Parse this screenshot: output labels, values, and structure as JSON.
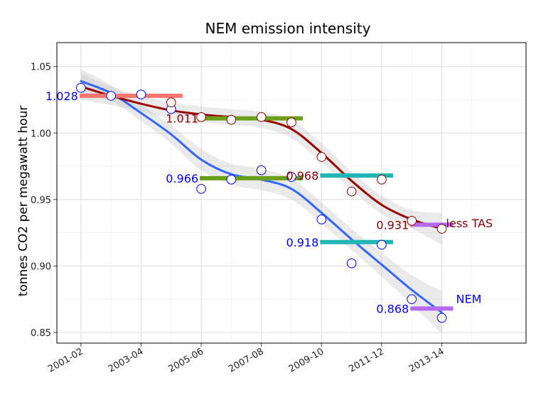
{
  "chart_data": {
    "type": "line",
    "title": "NEM emission intensity",
    "xlabel": "",
    "ylabel": "tonnes CO2 per megawatt hour",
    "ylim": [
      0.842,
      1.068
    ],
    "xlim": [
      2000.2,
      2015.8
    ],
    "y_ticks": [
      "0.85",
      "0.90",
      "0.95",
      "1.00",
      "1.05"
    ],
    "y_tick_values": [
      0.85,
      0.9,
      0.95,
      1.0,
      1.05
    ],
    "x_ticks": [
      "2001-02",
      "2003-04",
      "2005-06",
      "2007-08",
      "2009-10",
      "2011-12",
      "2013-14"
    ],
    "x_tick_values": [
      2001,
      2003,
      2005,
      2007,
      2009,
      2011,
      2013
    ],
    "grid": true,
    "series": [
      {
        "name": "NEM",
        "color": "#0000ff",
        "smooth_color": "#3366ff",
        "x": [
          2001,
          2002,
          2003,
          2004,
          2005,
          2006,
          2007,
          2008,
          2009,
          2010,
          2011,
          2012,
          2013
        ],
        "values": [
          1.034,
          1.028,
          1.029,
          1.018,
          0.958,
          0.965,
          0.972,
          0.967,
          0.935,
          0.902,
          0.916,
          0.875,
          0.861
        ],
        "smooth": [
          1.039,
          1.03,
          1.015,
          0.999,
          0.98,
          0.969,
          0.965,
          0.958,
          0.94,
          0.92,
          0.901,
          0.882,
          0.865
        ],
        "band": [
          0.009,
          0.006,
          0.006,
          0.007,
          0.008,
          0.008,
          0.008,
          0.008,
          0.008,
          0.008,
          0.009,
          0.011,
          0.016
        ]
      },
      {
        "name": "less TAS",
        "color": "#8b0000",
        "smooth_color": "#990000",
        "x": [
          2004,
          2005,
          2006,
          2007,
          2008,
          2009,
          2010,
          2011,
          2012,
          2013
        ],
        "values": [
          1.023,
          1.012,
          1.01,
          1.012,
          1.008,
          0.982,
          0.956,
          0.965,
          0.934,
          0.928
        ],
        "smooth_x": [
          2001,
          2002,
          2003,
          2004,
          2005,
          2006,
          2007,
          2008,
          2009,
          2010,
          2011,
          2012,
          2013
        ],
        "smooth": [
          1.035,
          1.028,
          1.022,
          1.017,
          1.014,
          1.012,
          1.01,
          1.003,
          0.985,
          0.964,
          0.946,
          0.935,
          0.928
        ],
        "band": [
          0.01,
          0.007,
          0.006,
          0.006,
          0.006,
          0.006,
          0.006,
          0.007,
          0.007,
          0.007,
          0.007,
          0.007,
          0.012
        ]
      }
    ],
    "period_means": [
      {
        "label": "1.028",
        "value": 1.028,
        "x_from": 2001,
        "x_to": 2004,
        "color": "#f8766d",
        "label_color": "#0000ff"
      },
      {
        "label": "1.011",
        "value": 1.011,
        "x_from": 2005,
        "x_to": 2008,
        "color": "#6c9f19",
        "label_color": "#8b0000"
      },
      {
        "label": "0.966",
        "value": 0.966,
        "x_from": 2005,
        "x_to": 2008,
        "color": "#6c9f19",
        "label_color": "#0000ff"
      },
      {
        "label": "0.968",
        "value": 0.968,
        "x_from": 2009,
        "x_to": 2011,
        "color": "#1fb5b5",
        "label_color": "#8b0000"
      },
      {
        "label": "0.918",
        "value": 0.918,
        "x_from": 2009,
        "x_to": 2011,
        "color": "#1fb5b5",
        "label_color": "#0000ff"
      },
      {
        "label": "0.931",
        "value": 0.931,
        "x_from": 2012,
        "x_to": 2013,
        "color": "#b469f0",
        "label_color": "#8b0000"
      },
      {
        "label": "0.868",
        "value": 0.868,
        "x_from": 2012,
        "x_to": 2013,
        "color": "#b469f0",
        "label_color": "#0000ff"
      }
    ],
    "series_labels": [
      {
        "text": "less TAS",
        "color": "#8b0000"
      },
      {
        "text": "NEM",
        "color": "#0000ff"
      }
    ],
    "colors": {
      "panel_bg": "#ffffff",
      "grid": "#ebebeb",
      "band": "#bdbdbd"
    }
  }
}
